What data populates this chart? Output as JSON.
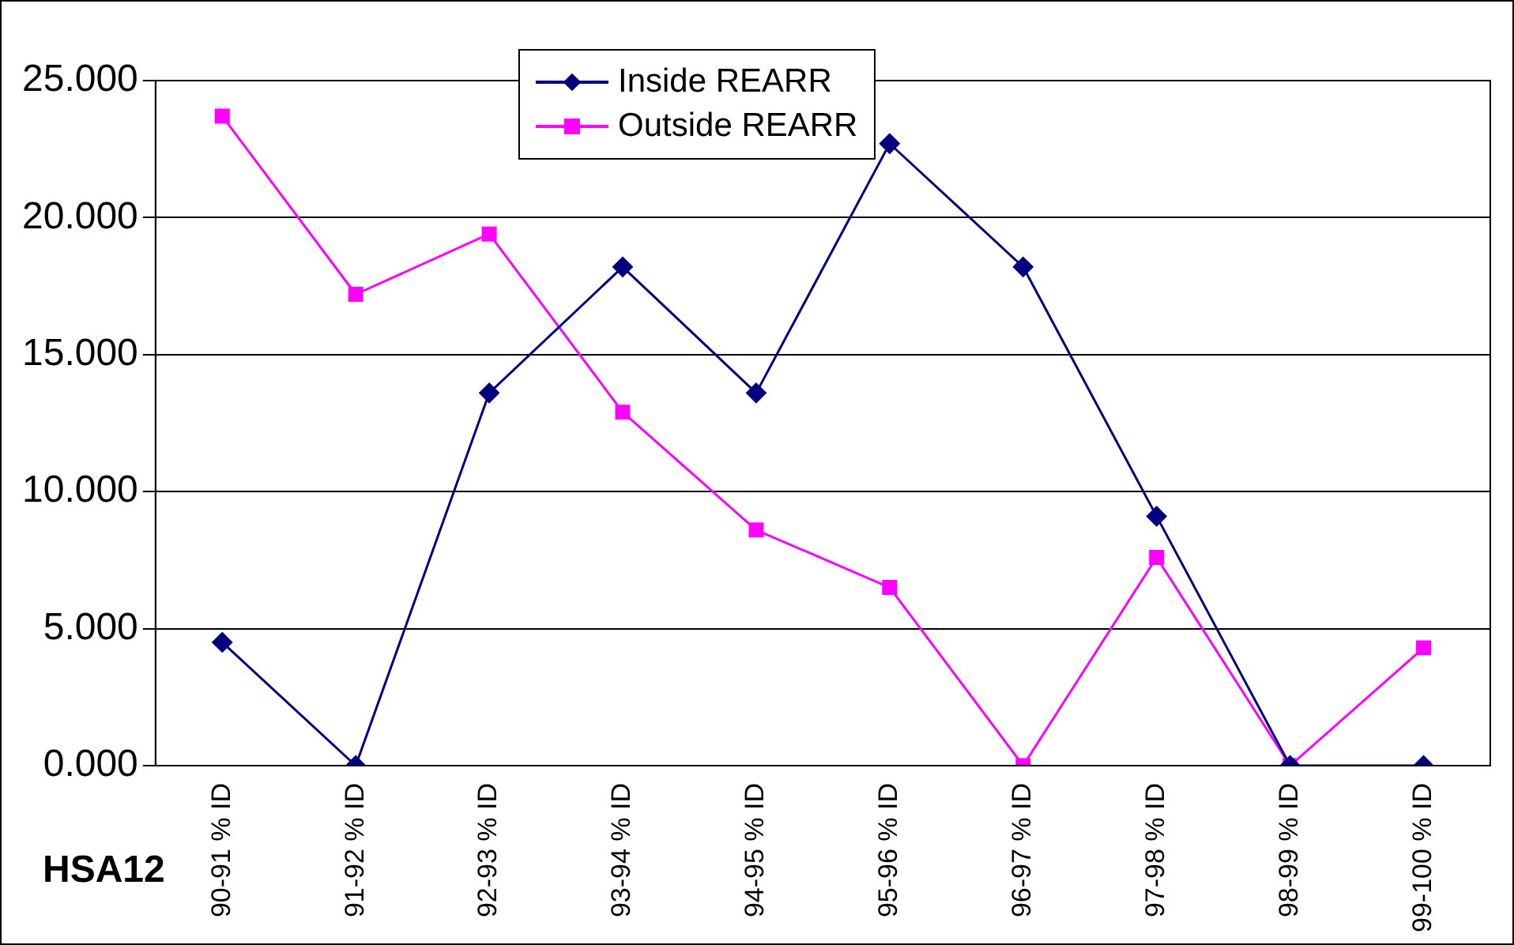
{
  "chart_data": {
    "type": "line",
    "categories": [
      "90-91 % ID",
      "91-92 % ID",
      "92-93 % ID",
      "93-94 % ID",
      "94-95 % ID",
      "95-96 % ID",
      "96-97 % ID",
      "97-98 % ID",
      "98-99 % ID",
      "99-100 % ID"
    ],
    "series": [
      {
        "name": "Inside REARR",
        "color": "#000080",
        "marker": "diamond",
        "values": [
          4.5,
          0,
          13.6,
          18.2,
          13.6,
          22.7,
          18.2,
          9.1,
          0,
          0
        ]
      },
      {
        "name": "Outside REARR",
        "color": "#ff00ff",
        "marker": "square",
        "values": [
          23.7,
          17.2,
          19.4,
          12.9,
          8.6,
          6.5,
          0,
          7.6,
          0,
          4.3
        ]
      }
    ],
    "ylim": [
      0,
      25
    ],
    "yticks": [
      {
        "value": 0,
        "label": "0.000"
      },
      {
        "value": 5,
        "label": "5.000"
      },
      {
        "value": 10,
        "label": "10.000"
      },
      {
        "value": 15,
        "label": "15.000"
      },
      {
        "value": 20,
        "label": "20.000"
      },
      {
        "value": 25,
        "label": "25.000"
      }
    ],
    "grid": "y",
    "legend": "top",
    "line_style": "solid",
    "annotations": [
      "HSA12"
    ]
  }
}
